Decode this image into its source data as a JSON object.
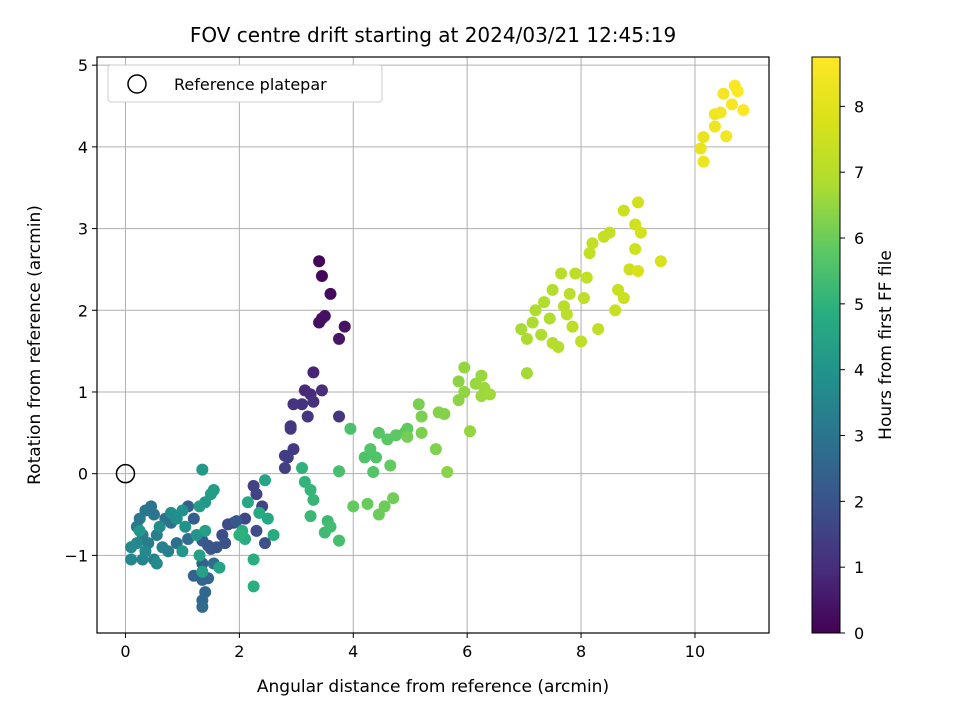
{
  "chart_data": {
    "type": "scatter",
    "title": "FOV centre drift starting at 2024/03/21 12:45:19",
    "xlabel": "Angular distance from reference (arcmin)",
    "ylabel": "Rotation from reference (arcmin)",
    "colorbar_label": "Hours from first FF file",
    "xlim": [
      -0.5,
      11.3
    ],
    "ylim": [
      -1.95,
      5.1
    ],
    "x_ticks": [
      0,
      2,
      4,
      6,
      8,
      10
    ],
    "y_ticks": [
      -1,
      0,
      1,
      2,
      3,
      4,
      5
    ],
    "y_tick_labels": [
      "−1",
      "0",
      "1",
      "2",
      "3",
      "4",
      "5"
    ],
    "colorbar_range": [
      0,
      8.75
    ],
    "colorbar_ticks": [
      0,
      1,
      2,
      3,
      4,
      5,
      6,
      7,
      8
    ],
    "colormap": "viridis",
    "grid": true,
    "legend_position": "top-left",
    "legend": [
      {
        "label": "Reference platepar",
        "marker": "open-circle"
      }
    ],
    "reference_point": {
      "x": 0,
      "y": 0
    },
    "points": [
      {
        "x": 3.4,
        "y": 2.6,
        "t": 0.1
      },
      {
        "x": 3.45,
        "y": 2.42,
        "t": 0.15
      },
      {
        "x": 3.6,
        "y": 2.2,
        "t": 0.2
      },
      {
        "x": 3.45,
        "y": 1.9,
        "t": 0.25
      },
      {
        "x": 3.4,
        "y": 1.85,
        "t": 0.3
      },
      {
        "x": 3.5,
        "y": 1.93,
        "t": 0.35
      },
      {
        "x": 3.85,
        "y": 1.8,
        "t": 0.4
      },
      {
        "x": 3.75,
        "y": 1.65,
        "t": 0.45
      },
      {
        "x": 3.3,
        "y": 1.24,
        "t": 0.8
      },
      {
        "x": 3.15,
        "y": 1.02,
        "t": 0.9
      },
      {
        "x": 3.25,
        "y": 0.97,
        "t": 0.95
      },
      {
        "x": 3.45,
        "y": 1.02,
        "t": 1.0
      },
      {
        "x": 3.3,
        "y": 0.88,
        "t": 1.05
      },
      {
        "x": 3.1,
        "y": 0.85,
        "t": 1.1
      },
      {
        "x": 2.95,
        "y": 0.85,
        "t": 1.15
      },
      {
        "x": 3.2,
        "y": 0.7,
        "t": 1.2
      },
      {
        "x": 3.75,
        "y": 0.7,
        "t": 1.2
      },
      {
        "x": 2.9,
        "y": 0.58,
        "t": 1.25
      },
      {
        "x": 2.9,
        "y": 0.55,
        "t": 1.3
      },
      {
        "x": 2.95,
        "y": 0.3,
        "t": 1.35
      },
      {
        "x": 2.8,
        "y": 0.22,
        "t": 1.4
      },
      {
        "x": 2.85,
        "y": 0.2,
        "t": 1.4
      },
      {
        "x": 2.8,
        "y": 0.07,
        "t": 1.45
      },
      {
        "x": 2.25,
        "y": -0.15,
        "t": 1.5
      },
      {
        "x": 2.3,
        "y": -0.25,
        "t": 1.55
      },
      {
        "x": 2.4,
        "y": -0.4,
        "t": 1.6
      },
      {
        "x": 2.1,
        "y": -0.55,
        "t": 1.65
      },
      {
        "x": 1.9,
        "y": -0.6,
        "t": 1.7
      },
      {
        "x": 1.8,
        "y": -0.62,
        "t": 1.75
      },
      {
        "x": 2.3,
        "y": -0.7,
        "t": 1.8
      },
      {
        "x": 1.7,
        "y": -0.75,
        "t": 1.85
      },
      {
        "x": 2.45,
        "y": -0.85,
        "t": 1.9
      },
      {
        "x": 1.75,
        "y": -0.85,
        "t": 1.95
      },
      {
        "x": 1.6,
        "y": -0.9,
        "t": 2.0
      },
      {
        "x": 1.5,
        "y": -0.92,
        "t": 2.05
      },
      {
        "x": 1.45,
        "y": -0.88,
        "t": 2.1
      },
      {
        "x": 1.35,
        "y": -0.82,
        "t": 2.15
      },
      {
        "x": 1.95,
        "y": -0.58,
        "t": 2.2
      },
      {
        "x": 1.2,
        "y": -0.55,
        "t": 2.3
      },
      {
        "x": 1.1,
        "y": -0.4,
        "t": 2.35
      },
      {
        "x": 1.35,
        "y": -1.1,
        "t": 2.4
      },
      {
        "x": 1.2,
        "y": -1.25,
        "t": 2.45
      },
      {
        "x": 1.35,
        "y": -1.3,
        "t": 2.5
      },
      {
        "x": 1.45,
        "y": -1.28,
        "t": 2.55
      },
      {
        "x": 1.4,
        "y": -1.45,
        "t": 2.6
      },
      {
        "x": 1.35,
        "y": -1.55,
        "t": 2.65
      },
      {
        "x": 1.35,
        "y": -1.63,
        "t": 2.7
      },
      {
        "x": 1.55,
        "y": -1.1,
        "t": 2.75
      },
      {
        "x": 1.1,
        "y": -0.8,
        "t": 2.8
      },
      {
        "x": 0.9,
        "y": -0.85,
        "t": 2.85
      },
      {
        "x": 0.8,
        "y": -0.6,
        "t": 2.9
      },
      {
        "x": 0.7,
        "y": -0.55,
        "t": 2.95
      },
      {
        "x": 0.5,
        "y": -0.5,
        "t": 3.0
      },
      {
        "x": 0.45,
        "y": -0.4,
        "t": 3.0
      },
      {
        "x": 0.35,
        "y": -0.45,
        "t": 3.05
      },
      {
        "x": 0.25,
        "y": -0.55,
        "t": 3.1
      },
      {
        "x": 0.2,
        "y": -0.65,
        "t": 3.15
      },
      {
        "x": 0.3,
        "y": -0.75,
        "t": 3.2
      },
      {
        "x": 0.4,
        "y": -0.85,
        "t": 3.25
      },
      {
        "x": 0.55,
        "y": -0.75,
        "t": 3.3
      },
      {
        "x": 0.65,
        "y": -0.9,
        "t": 3.35
      },
      {
        "x": 0.75,
        "y": -0.95,
        "t": 3.4
      },
      {
        "x": 0.5,
        "y": -1.05,
        "t": 3.45
      },
      {
        "x": 0.3,
        "y": -1.05,
        "t": 3.5
      },
      {
        "x": 0.1,
        "y": -1.05,
        "t": 3.55
      },
      {
        "x": 0.1,
        "y": -0.9,
        "t": 3.6
      },
      {
        "x": 0.2,
        "y": -0.85,
        "t": 3.6
      },
      {
        "x": 0.35,
        "y": -0.95,
        "t": 3.65
      },
      {
        "x": 0.55,
        "y": -1.1,
        "t": 3.7
      },
      {
        "x": 0.6,
        "y": -0.65,
        "t": 3.75
      },
      {
        "x": 0.8,
        "y": -0.48,
        "t": 3.8
      },
      {
        "x": 0.9,
        "y": -0.55,
        "t": 3.85
      },
      {
        "x": 1.0,
        "y": -0.45,
        "t": 3.9
      },
      {
        "x": 1.05,
        "y": -0.65,
        "t": 3.95
      },
      {
        "x": 1.25,
        "y": -0.75,
        "t": 4.0
      },
      {
        "x": 1.0,
        "y": -0.95,
        "t": 4.05
      },
      {
        "x": 0.25,
        "y": -0.7,
        "t": 4.1
      },
      {
        "x": 1.35,
        "y": 0.05,
        "t": 4.15
      },
      {
        "x": 1.4,
        "y": -0.35,
        "t": 4.2
      },
      {
        "x": 1.3,
        "y": -0.4,
        "t": 4.25
      },
      {
        "x": 1.5,
        "y": -0.25,
        "t": 4.3
      },
      {
        "x": 1.55,
        "y": -0.2,
        "t": 4.3
      },
      {
        "x": 1.4,
        "y": -0.7,
        "t": 4.35
      },
      {
        "x": 1.3,
        "y": -1.0,
        "t": 4.4
      },
      {
        "x": 1.35,
        "y": -1.2,
        "t": 4.45
      },
      {
        "x": 1.65,
        "y": -1.15,
        "t": 4.5
      },
      {
        "x": 2.45,
        "y": -0.08,
        "t": 4.55
      },
      {
        "x": 2.15,
        "y": -0.35,
        "t": 4.6
      },
      {
        "x": 2.5,
        "y": -0.55,
        "t": 4.65
      },
      {
        "x": 2.35,
        "y": -0.48,
        "t": 4.7
      },
      {
        "x": 2.6,
        "y": -0.75,
        "t": 4.75
      },
      {
        "x": 2.05,
        "y": -0.7,
        "t": 4.8
      },
      {
        "x": 2.1,
        "y": -0.8,
        "t": 4.8
      },
      {
        "x": 2.25,
        "y": -1.05,
        "t": 4.85
      },
      {
        "x": 2.25,
        "y": -1.38,
        "t": 4.9
      },
      {
        "x": 2.0,
        "y": -0.75,
        "t": 4.95
      },
      {
        "x": 3.1,
        "y": 0.07,
        "t": 5.0
      },
      {
        "x": 3.15,
        "y": -0.1,
        "t": 5.05
      },
      {
        "x": 3.25,
        "y": -0.2,
        "t": 5.1
      },
      {
        "x": 3.3,
        "y": -0.32,
        "t": 5.15
      },
      {
        "x": 3.25,
        "y": -0.52,
        "t": 5.2
      },
      {
        "x": 3.55,
        "y": -0.58,
        "t": 5.25
      },
      {
        "x": 3.5,
        "y": -0.72,
        "t": 5.3
      },
      {
        "x": 3.6,
        "y": -0.65,
        "t": 5.35
      },
      {
        "x": 3.75,
        "y": -0.82,
        "t": 5.4
      },
      {
        "x": 3.75,
        "y": 0.03,
        "t": 5.45
      },
      {
        "x": 3.95,
        "y": 0.55,
        "t": 5.5
      },
      {
        "x": 4.2,
        "y": 0.2,
        "t": 5.55
      },
      {
        "x": 4.3,
        "y": 0.3,
        "t": 5.6
      },
      {
        "x": 4.4,
        "y": 0.2,
        "t": 5.6
      },
      {
        "x": 4.35,
        "y": 0.02,
        "t": 5.65
      },
      {
        "x": 4.45,
        "y": 0.5,
        "t": 5.7
      },
      {
        "x": 4.6,
        "y": 0.42,
        "t": 5.75
      },
      {
        "x": 4.75,
        "y": 0.47,
        "t": 5.8
      },
      {
        "x": 4.9,
        "y": 0.5,
        "t": 5.8
      },
      {
        "x": 4.95,
        "y": 0.55,
        "t": 5.85
      },
      {
        "x": 4.65,
        "y": 0.1,
        "t": 5.9
      },
      {
        "x": 4.0,
        "y": -0.4,
        "t": 5.9
      },
      {
        "x": 4.25,
        "y": -0.37,
        "t": 5.95
      },
      {
        "x": 4.45,
        "y": -0.5,
        "t": 6.0
      },
      {
        "x": 4.55,
        "y": -0.4,
        "t": 6.0
      },
      {
        "x": 4.7,
        "y": -0.3,
        "t": 6.05
      },
      {
        "x": 4.95,
        "y": 0.45,
        "t": 6.1
      },
      {
        "x": 5.15,
        "y": 0.85,
        "t": 6.15
      },
      {
        "x": 5.2,
        "y": 0.7,
        "t": 6.2
      },
      {
        "x": 5.2,
        "y": 0.5,
        "t": 6.2
      },
      {
        "x": 5.45,
        "y": 0.3,
        "t": 6.25
      },
      {
        "x": 5.5,
        "y": 0.75,
        "t": 6.3
      },
      {
        "x": 5.6,
        "y": 0.73,
        "t": 6.3
      },
      {
        "x": 5.65,
        "y": 0.02,
        "t": 6.35
      },
      {
        "x": 5.85,
        "y": 0.9,
        "t": 6.4
      },
      {
        "x": 5.85,
        "y": 1.13,
        "t": 6.4
      },
      {
        "x": 5.95,
        "y": 1.0,
        "t": 6.45
      },
      {
        "x": 5.95,
        "y": 1.3,
        "t": 6.5
      },
      {
        "x": 6.05,
        "y": 0.52,
        "t": 6.5
      },
      {
        "x": 6.15,
        "y": 1.1,
        "t": 6.55
      },
      {
        "x": 6.25,
        "y": 1.2,
        "t": 6.55
      },
      {
        "x": 6.3,
        "y": 1.05,
        "t": 6.6
      },
      {
        "x": 6.25,
        "y": 0.95,
        "t": 6.6
      },
      {
        "x": 6.4,
        "y": 0.97,
        "t": 6.65
      },
      {
        "x": 7.05,
        "y": 1.23,
        "t": 6.7
      },
      {
        "x": 6.95,
        "y": 1.77,
        "t": 6.75
      },
      {
        "x": 7.05,
        "y": 1.65,
        "t": 6.8
      },
      {
        "x": 7.15,
        "y": 1.85,
        "t": 6.8
      },
      {
        "x": 7.2,
        "y": 2.0,
        "t": 6.85
      },
      {
        "x": 7.3,
        "y": 1.7,
        "t": 6.85
      },
      {
        "x": 7.35,
        "y": 2.1,
        "t": 6.9
      },
      {
        "x": 7.45,
        "y": 1.9,
        "t": 6.9
      },
      {
        "x": 7.5,
        "y": 2.25,
        "t": 6.95
      },
      {
        "x": 7.5,
        "y": 1.6,
        "t": 7.0
      },
      {
        "x": 7.6,
        "y": 1.55,
        "t": 7.0
      },
      {
        "x": 7.65,
        "y": 2.45,
        "t": 7.05
      },
      {
        "x": 7.7,
        "y": 2.05,
        "t": 7.05
      },
      {
        "x": 7.75,
        "y": 1.95,
        "t": 7.1
      },
      {
        "x": 7.8,
        "y": 2.2,
        "t": 7.1
      },
      {
        "x": 7.85,
        "y": 1.8,
        "t": 7.15
      },
      {
        "x": 7.9,
        "y": 2.45,
        "t": 7.15
      },
      {
        "x": 8.0,
        "y": 1.62,
        "t": 7.2
      },
      {
        "x": 8.05,
        "y": 2.15,
        "t": 7.2
      },
      {
        "x": 8.1,
        "y": 2.4,
        "t": 7.25
      },
      {
        "x": 8.15,
        "y": 2.7,
        "t": 7.25
      },
      {
        "x": 8.2,
        "y": 2.82,
        "t": 7.3
      },
      {
        "x": 8.3,
        "y": 1.77,
        "t": 7.3
      },
      {
        "x": 8.4,
        "y": 2.9,
        "t": 7.35
      },
      {
        "x": 8.5,
        "y": 2.95,
        "t": 7.35
      },
      {
        "x": 8.6,
        "y": 2.0,
        "t": 7.4
      },
      {
        "x": 8.65,
        "y": 2.25,
        "t": 7.4
      },
      {
        "x": 8.75,
        "y": 2.15,
        "t": 7.45
      },
      {
        "x": 8.75,
        "y": 3.22,
        "t": 7.5
      },
      {
        "x": 8.85,
        "y": 2.5,
        "t": 7.5
      },
      {
        "x": 8.95,
        "y": 2.75,
        "t": 7.55
      },
      {
        "x": 8.95,
        "y": 3.05,
        "t": 7.6
      },
      {
        "x": 9.0,
        "y": 3.32,
        "t": 7.65
      },
      {
        "x": 9.05,
        "y": 2.95,
        "t": 7.7
      },
      {
        "x": 9.4,
        "y": 2.6,
        "t": 7.75
      },
      {
        "x": 9.0,
        "y": 2.48,
        "t": 7.8
      },
      {
        "x": 10.1,
        "y": 3.98,
        "t": 8.2
      },
      {
        "x": 10.15,
        "y": 4.12,
        "t": 8.25
      },
      {
        "x": 10.15,
        "y": 3.82,
        "t": 8.3
      },
      {
        "x": 10.35,
        "y": 4.25,
        "t": 8.35
      },
      {
        "x": 10.35,
        "y": 4.4,
        "t": 8.4
      },
      {
        "x": 10.45,
        "y": 4.42,
        "t": 8.45
      },
      {
        "x": 10.55,
        "y": 4.13,
        "t": 8.5
      },
      {
        "x": 10.5,
        "y": 4.65,
        "t": 8.55
      },
      {
        "x": 10.65,
        "y": 4.52,
        "t": 8.6
      },
      {
        "x": 10.7,
        "y": 4.75,
        "t": 8.65
      },
      {
        "x": 10.75,
        "y": 4.68,
        "t": 8.7
      },
      {
        "x": 10.85,
        "y": 4.45,
        "t": 8.75
      }
    ]
  }
}
